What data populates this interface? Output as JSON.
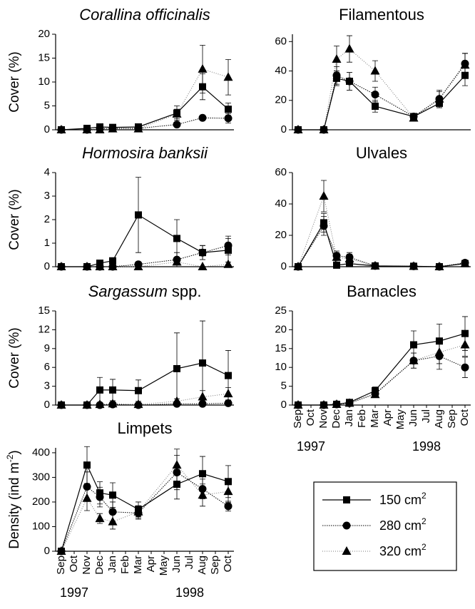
{
  "chart_data": [
    {
      "type": "line",
      "title": "Corallina officinalis",
      "title_italic": true,
      "ylabel": "Cover (%)",
      "xlim": [
        0,
        13
      ],
      "ylim": [
        0,
        20
      ],
      "yticks": [
        0,
        5,
        10,
        15,
        20
      ],
      "x": [
        0,
        2,
        3,
        4,
        6,
        9,
        11,
        13
      ],
      "series": [
        {
          "name": "150 cm",
          "name_superscript": "2",
          "marker": "square",
          "color": "#000000",
          "line_style": "solid",
          "values": [
            0,
            0.3,
            0.6,
            0.5,
            0.6,
            3.5,
            9,
            4.3
          ],
          "errors": [
            0,
            0.2,
            0.3,
            0.3,
            0.4,
            1.5,
            2.7,
            1.3
          ]
        },
        {
          "name": "280 cm",
          "name_superscript": "2",
          "marker": "circle",
          "color": "#000000",
          "line_style": "dotted",
          "values": [
            0,
            0,
            0.2,
            0.3,
            0.3,
            1.1,
            2.5,
            2.4
          ],
          "errors": [
            0,
            0,
            0.1,
            0.2,
            0.2,
            0.5,
            0.5,
            1
          ]
        },
        {
          "name": "320 cm",
          "name_superscript": "2",
          "marker": "triangle",
          "color": "#000000",
          "line_style": "light-dotted",
          "values": [
            0,
            0,
            0,
            0.2,
            0.2,
            3.3,
            12.7,
            11
          ],
          "errors": [
            0,
            0,
            0,
            0.1,
            0.1,
            1,
            5,
            3.7
          ]
        }
      ]
    },
    {
      "type": "line",
      "title": "Filamentous",
      "xlim": [
        0,
        13
      ],
      "ylim": [
        0,
        65
      ],
      "yticks": [
        0,
        20,
        40,
        60
      ],
      "x": [
        0,
        2,
        3,
        4,
        6,
        9,
        11,
        13
      ],
      "series": [
        {
          "marker": "square",
          "color": "#000000",
          "line_style": "solid",
          "values": [
            0,
            0,
            35,
            33,
            16,
            9,
            18,
            37
          ],
          "errors": [
            0,
            0,
            5,
            6,
            4,
            1,
            3,
            7
          ]
        },
        {
          "marker": "circle",
          "color": "#000000",
          "line_style": "dotted",
          "values": [
            0,
            0,
            37,
            33,
            24,
            9,
            21,
            45
          ],
          "errors": [
            0,
            0,
            6,
            6,
            5,
            1,
            5,
            7
          ]
        },
        {
          "marker": "triangle",
          "color": "#000000",
          "line_style": "light-dotted",
          "values": [
            0,
            0,
            48,
            55,
            40,
            8,
            21,
            44
          ],
          "errors": [
            0,
            0,
            9,
            9,
            7,
            1,
            6,
            8
          ]
        }
      ]
    },
    {
      "type": "line",
      "title": "Hormosira banksii",
      "title_italic": true,
      "ylabel": "Cover (%)",
      "xlim": [
        0,
        13
      ],
      "ylim": [
        0,
        4
      ],
      "yticks": [
        0,
        1,
        2,
        3,
        4
      ],
      "x": [
        0,
        2,
        3,
        4,
        6,
        9,
        11,
        13
      ],
      "series": [
        {
          "marker": "square",
          "color": "#000000",
          "line_style": "solid",
          "values": [
            0,
            0,
            0.15,
            0.25,
            2.2,
            1.2,
            0.6,
            0.7
          ],
          "errors": [
            0,
            0,
            0.1,
            0.1,
            1.6,
            0.8,
            0.3,
            0.5
          ]
        },
        {
          "marker": "circle",
          "color": "#000000",
          "line_style": "dotted",
          "values": [
            0,
            0,
            0,
            0,
            0.1,
            0.3,
            0.6,
            0.9
          ],
          "errors": [
            0,
            0,
            0,
            0,
            0.05,
            0.3,
            0.3,
            0.4
          ]
        },
        {
          "marker": "triangle",
          "color": "#000000",
          "line_style": "light-dotted",
          "values": [
            0,
            0,
            0,
            0,
            0,
            0.2,
            0,
            0.1
          ],
          "errors": [
            0,
            0,
            0,
            0,
            0,
            0.1,
            0,
            0.1
          ]
        }
      ]
    },
    {
      "type": "line",
      "title": "Ulvales",
      "xlim": [
        0,
        13
      ],
      "ylim": [
        0,
        60
      ],
      "yticks": [
        0,
        20,
        40,
        60
      ],
      "x": [
        0,
        2,
        3,
        4,
        6,
        9,
        11,
        13
      ],
      "series": [
        {
          "marker": "square",
          "color": "#000000",
          "line_style": "solid",
          "values": [
            0,
            28,
            1,
            2,
            0.5,
            0.3,
            0,
            2
          ],
          "errors": [
            0,
            6,
            2,
            2,
            0.5,
            0.3,
            0,
            1
          ]
        },
        {
          "marker": "circle",
          "color": "#000000",
          "line_style": "dotted",
          "values": [
            0,
            26,
            7,
            6,
            0.5,
            0.3,
            0,
            2.5
          ],
          "errors": [
            0,
            6,
            3,
            3,
            0.5,
            0.3,
            0,
            1
          ]
        },
        {
          "marker": "triangle",
          "color": "#000000",
          "line_style": "light-dotted",
          "values": [
            0,
            45,
            6,
            5,
            0.5,
            0.3,
            0,
            2
          ],
          "errors": [
            0,
            10,
            3,
            3,
            0.5,
            0.3,
            0,
            1
          ]
        }
      ]
    },
    {
      "type": "line",
      "title": [
        "Sargassum",
        "spp."
      ],
      "title_italic": [
        true,
        false
      ],
      "ylabel": "Cover (%)",
      "xlim": [
        0,
        13
      ],
      "ylim": [
        0,
        15
      ],
      "yticks": [
        0,
        3,
        6,
        9,
        12,
        15
      ],
      "x": [
        0,
        2,
        3,
        4,
        6,
        9,
        11,
        13
      ],
      "series": [
        {
          "marker": "square",
          "color": "#000000",
          "line_style": "solid",
          "values": [
            0,
            0,
            2.4,
            2.4,
            2.3,
            5.8,
            6.7,
            4.7
          ],
          "errors": [
            0,
            0,
            2,
            1.7,
            1.7,
            5.7,
            6.7,
            4
          ]
        },
        {
          "marker": "circle",
          "color": "#000000",
          "line_style": "dotted",
          "values": [
            0,
            0,
            0,
            0.1,
            0,
            0.2,
            0.2,
            0.3
          ],
          "errors": [
            0,
            0,
            0,
            0.1,
            0,
            0.2,
            0.2,
            0.2
          ]
        },
        {
          "marker": "triangle",
          "color": "#000000",
          "line_style": "light-dotted",
          "values": [
            0,
            0,
            0.1,
            0.2,
            0.1,
            0.6,
            1.3,
            1.8
          ],
          "errors": [
            0,
            0,
            0.1,
            0.2,
            0.1,
            0.4,
            1,
            1
          ]
        }
      ]
    },
    {
      "type": "line",
      "title": "Barnacles",
      "xlim": [
        0,
        13
      ],
      "ylim": [
        0,
        25
      ],
      "yticks": [
        0,
        5,
        10,
        15,
        20,
        25
      ],
      "xticks": [
        {
          "value": 0,
          "label": "Sep"
        },
        {
          "value": 1,
          "label": "Oct"
        },
        {
          "value": 2,
          "label": "Nov"
        },
        {
          "value": 3,
          "label": "Dec"
        },
        {
          "value": 4,
          "label": "Jan"
        },
        {
          "value": 5,
          "label": "Feb"
        },
        {
          "value": 6,
          "label": "Mar"
        },
        {
          "value": 7,
          "label": "Apr"
        },
        {
          "value": 8,
          "label": "May"
        },
        {
          "value": 9,
          "label": "Jun"
        },
        {
          "value": 10,
          "label": "Jul"
        },
        {
          "value": 11,
          "label": "Aug"
        },
        {
          "value": 12,
          "label": "Sep"
        },
        {
          "value": 13,
          "label": "Oct"
        }
      ],
      "annotations": [
        "1997",
        "1998"
      ],
      "x": [
        0,
        2,
        3,
        4,
        6,
        9,
        11,
        13
      ],
      "series": [
        {
          "marker": "square",
          "color": "#000000",
          "line_style": "solid",
          "values": [
            0,
            0,
            0.2,
            0.7,
            3.8,
            16,
            17,
            19
          ],
          "errors": [
            0,
            0,
            0.2,
            0.3,
            1,
            3.7,
            4.5,
            4.5
          ]
        },
        {
          "marker": "circle",
          "color": "#000000",
          "line_style": "dotted",
          "values": [
            0,
            0,
            0.2,
            0.5,
            3,
            11.8,
            13,
            10
          ],
          "errors": [
            0,
            0,
            0.2,
            0.3,
            0.8,
            2,
            3.5,
            2.7
          ]
        },
        {
          "marker": "triangle",
          "color": "#000000",
          "line_style": "light-dotted",
          "values": [
            0,
            0,
            0.2,
            0.5,
            2.8,
            11.8,
            14,
            16
          ],
          "errors": [
            0,
            0,
            0.2,
            0.3,
            0.8,
            2,
            3,
            3
          ]
        }
      ]
    },
    {
      "type": "line",
      "title": "Limpets",
      "ylabel": "Density (ind m",
      "ylabel_superscript": "-2",
      "ylabel_suffix": ")",
      "xlim": [
        0,
        13
      ],
      "ylim": [
        0,
        420
      ],
      "yticks": [
        0,
        100,
        200,
        300,
        400
      ],
      "xticks": [
        {
          "value": 0,
          "label": "Sep"
        },
        {
          "value": 1,
          "label": "Oct"
        },
        {
          "value": 2,
          "label": "Nov"
        },
        {
          "value": 3,
          "label": "Dec"
        },
        {
          "value": 4,
          "label": "Jan"
        },
        {
          "value": 5,
          "label": "Feb"
        },
        {
          "value": 6,
          "label": "Mar"
        },
        {
          "value": 7,
          "label": "Apr"
        },
        {
          "value": 8,
          "label": "May"
        },
        {
          "value": 9,
          "label": "Jun"
        },
        {
          "value": 10,
          "label": "Jul"
        },
        {
          "value": 11,
          "label": "Aug"
        },
        {
          "value": 12,
          "label": "Sep"
        },
        {
          "value": 13,
          "label": "Oct"
        }
      ],
      "annotations": [
        "1997",
        "1998"
      ],
      "x": [
        0,
        2,
        3,
        4,
        6,
        9,
        11,
        13
      ],
      "series": [
        {
          "marker": "square",
          "color": "#000000",
          "line_style": "solid",
          "values": [
            0,
            350,
            237,
            228,
            170,
            272,
            315,
            283
          ],
          "errors": [
            0,
            75,
            45,
            50,
            30,
            60,
            70,
            65
          ]
        },
        {
          "marker": "circle",
          "color": "#000000",
          "line_style": "dotted",
          "values": [
            0,
            262,
            220,
            160,
            155,
            320,
            253,
            183
          ],
          "errors": [
            0,
            60,
            40,
            40,
            25,
            70,
            40,
            20
          ]
        },
        {
          "marker": "triangle",
          "color": "#000000",
          "line_style": "light-dotted",
          "values": [
            0,
            215,
            133,
            120,
            160,
            350,
            228,
            243
          ],
          "errors": [
            0,
            50,
            20,
            30,
            25,
            65,
            45,
            45
          ]
        }
      ]
    }
  ]
}
